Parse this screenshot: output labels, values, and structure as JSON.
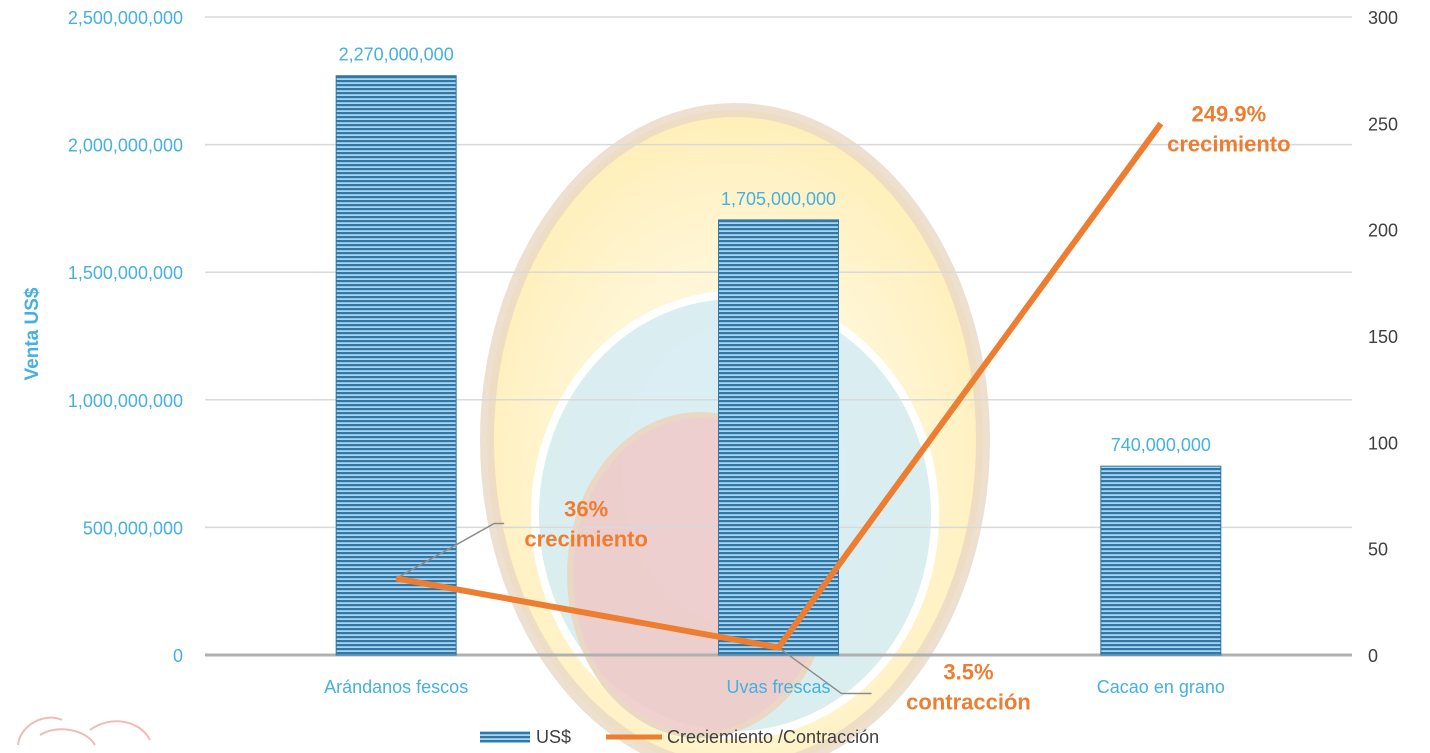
{
  "chart_data": {
    "type": "bar",
    "categories": [
      "Arándanos fescos",
      "Uvas frescas",
      "Cacao en grano"
    ],
    "series": [
      {
        "name": "US$",
        "type": "bar",
        "axis": "left",
        "values": [
          2270000000,
          1705000000,
          740000000
        ],
        "labels": [
          "2,270,000,000",
          "1,705,000,000",
          "740,000,000"
        ],
        "color": "#2e75a6"
      },
      {
        "name": "Creciemiento /Contracción",
        "type": "line",
        "axis": "right",
        "values": [
          36,
          3.5,
          249.9
        ],
        "color": "#ed7d31"
      }
    ],
    "ylabel": "Venta US$",
    "ylim": [
      0,
      2500000000
    ],
    "y2lim": [
      0,
      300
    ],
    "yticks": [
      "0",
      "500,000,000",
      "1,000,000,000",
      "1,500,000,000",
      "2,000,000,000",
      "2,500,000,000"
    ],
    "y2ticks": [
      "0",
      "50",
      "100",
      "150",
      "200",
      "250",
      "300"
    ],
    "annotations": [
      {
        "line1": "36%",
        "line2": "crecimiento"
      },
      {
        "line1": "3.5%",
        "line2": "contracción"
      },
      {
        "line1": "249.9%",
        "line2": "crecimiento"
      }
    ],
    "legend_position": "bottom",
    "grid": true
  }
}
